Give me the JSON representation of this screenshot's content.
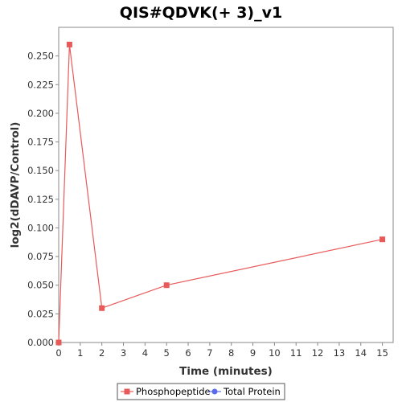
{
  "chart_data": {
    "type": "line",
    "title": "QIS#QDVK(+ 3)_v1",
    "xlabel": "Time (minutes)",
    "ylabel": "log2(dDAVP/Control)",
    "xlim": [
      0,
      15.5
    ],
    "ylim": [
      0,
      0.275
    ],
    "xticks": [
      0,
      1,
      2,
      3,
      4,
      5,
      6,
      7,
      8,
      9,
      10,
      11,
      12,
      13,
      14,
      15
    ],
    "yticks": [
      0.0,
      0.025,
      0.05,
      0.075,
      0.1,
      0.125,
      0.15,
      0.175,
      0.2,
      0.225,
      0.25
    ],
    "ytick_labels": [
      "0.000",
      "0.025",
      "0.050",
      "0.075",
      "0.100",
      "0.125",
      "0.150",
      "0.175",
      "0.200",
      "0.225",
      "0.250"
    ],
    "grid": false,
    "legend_position": "bottom",
    "series": [
      {
        "name": "Phosphopeptide",
        "color": "#e85a5a",
        "marker": "square",
        "x": [
          0,
          0.5,
          2,
          5,
          15
        ],
        "y": [
          0.0,
          0.26,
          0.03,
          0.05,
          0.09
        ]
      },
      {
        "name": "Total Protein",
        "color": "#5a6ae8",
        "marker": "circle",
        "x": [],
        "y": []
      }
    ]
  }
}
